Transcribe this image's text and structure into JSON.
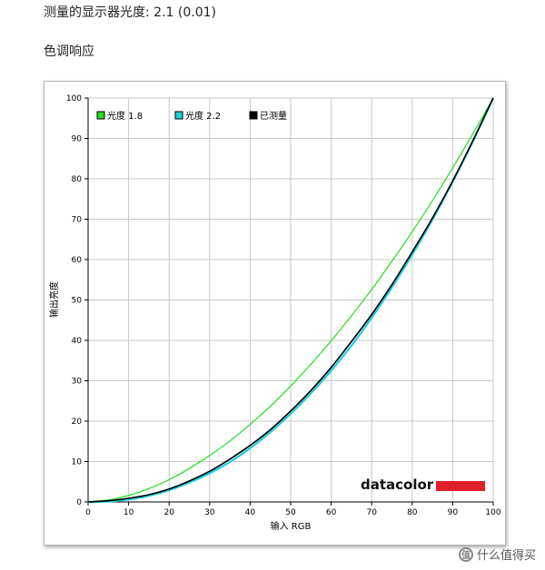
{
  "heading": "测量的显示器光度: 2.1 (0.01)",
  "subheading": "色调响应",
  "chart_data": {
    "type": "line",
    "xlabel": "输入 RGB",
    "ylabel": "输出亮度",
    "xlim": [
      0,
      100
    ],
    "ylim": [
      0,
      100
    ],
    "xticks": [
      0,
      10,
      20,
      30,
      40,
      50,
      60,
      70,
      80,
      90,
      100
    ],
    "yticks": [
      0,
      10,
      20,
      30,
      40,
      50,
      60,
      70,
      80,
      90,
      100
    ],
    "grid": true,
    "legend_position": "top-left",
    "x": [
      0,
      5,
      10,
      15,
      20,
      25,
      30,
      35,
      40,
      45,
      50,
      55,
      60,
      65,
      70,
      75,
      80,
      85,
      90,
      95,
      100
    ],
    "series": [
      {
        "name": "光度 1.8",
        "color": "#22dd22",
        "values": [
          0,
          0.5,
          1.6,
          3.3,
          5.5,
          8.3,
          11.5,
          15.1,
          19.2,
          23.7,
          28.7,
          34.1,
          39.9,
          46.1,
          52.6,
          59.6,
          66.9,
          74.6,
          82.7,
          91.2,
          100
        ]
      },
      {
        "name": "光度 2.2",
        "color": "#22ccdd",
        "values": [
          0,
          0.1,
          0.6,
          1.5,
          2.9,
          4.8,
          7.1,
          9.9,
          13.3,
          17.3,
          21.8,
          26.9,
          32.5,
          38.7,
          45.6,
          53.1,
          61.2,
          69.9,
          79.3,
          89.3,
          100
        ]
      },
      {
        "name": "已测量",
        "color": "#000000",
        "values": [
          0,
          0.3,
          0.9,
          1.8,
          3.2,
          5.2,
          7.6,
          10.6,
          14.0,
          17.9,
          22.5,
          27.6,
          33.3,
          39.7,
          46.4,
          53.8,
          61.9,
          70.3,
          79.5,
          89.5,
          100
        ]
      }
    ]
  },
  "logo": {
    "text": "datacolor",
    "bar_color": "#e0202a"
  },
  "watermark": {
    "icon": "zhi-icon",
    "text": "什么值得买"
  }
}
